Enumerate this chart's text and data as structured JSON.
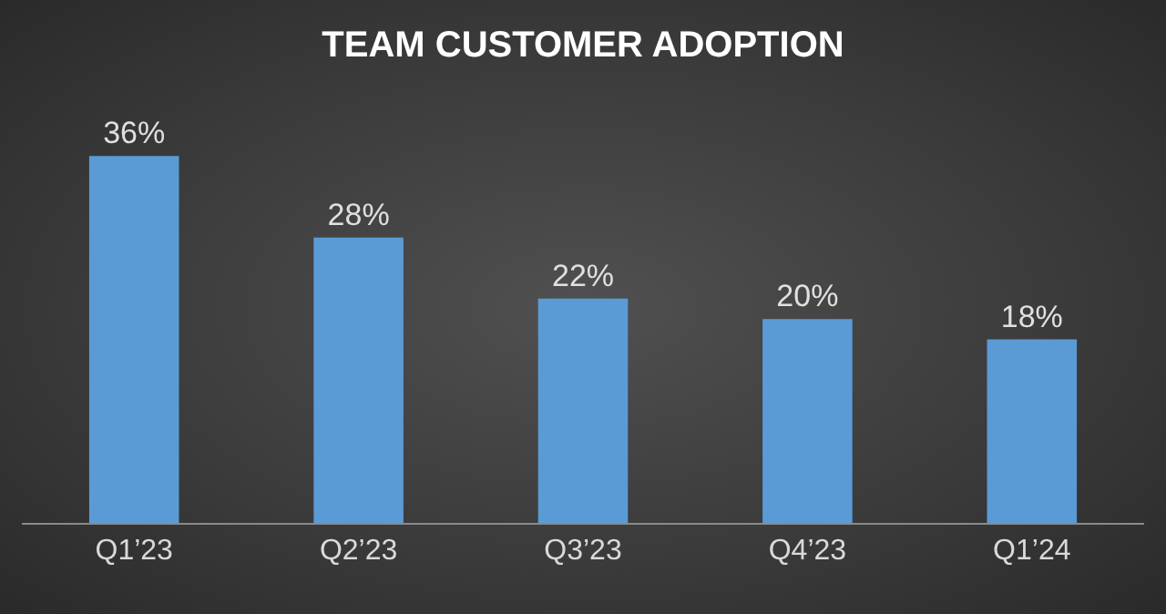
{
  "chart_data": {
    "type": "bar",
    "title": "TEAM CUSTOMER ADOPTION",
    "categories": [
      "Q1’23",
      "Q2’23",
      "Q3’23",
      "Q4’23",
      "Q1’24"
    ],
    "values": [
      36,
      28,
      22,
      20,
      18
    ],
    "value_labels": [
      "36%",
      "28%",
      "22%",
      "20%",
      "18%"
    ],
    "color": "#5b9bd5",
    "tick_labels": "x"
  }
}
